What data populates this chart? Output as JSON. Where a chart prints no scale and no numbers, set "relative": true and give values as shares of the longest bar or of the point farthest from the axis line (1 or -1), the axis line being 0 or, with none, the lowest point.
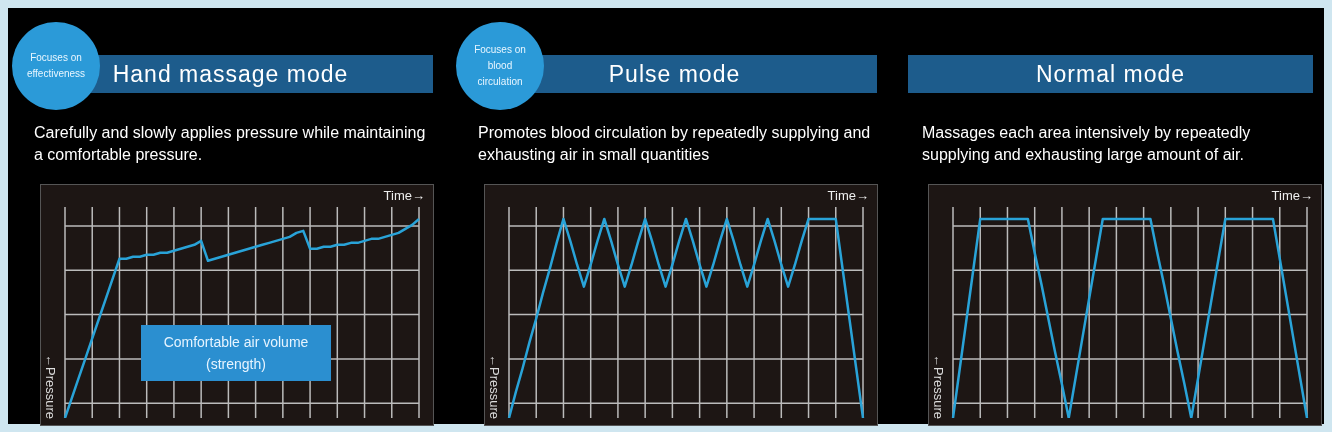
{
  "chart_data": [
    {
      "type": "line",
      "title": "Hand massage mode",
      "subtitle": "Carefully and slowly applies pressure while maintaining a comfortable pressure.",
      "xlabel": "Time→",
      "ylabel": "←Pressure",
      "annotations": [
        "Focuses on effectiveness",
        "Comfortable air volume (strength)"
      ],
      "relative": true,
      "grid": true,
      "categories": [
        null,
        null,
        null,
        null,
        null,
        null,
        null,
        null,
        null,
        null,
        null,
        null,
        null,
        null,
        null,
        null,
        null,
        null,
        null,
        null,
        null,
        null,
        null,
        null,
        null,
        null,
        null,
        null,
        null,
        null,
        null,
        null,
        null,
        null,
        null,
        null,
        null,
        null,
        null,
        null,
        null,
        null,
        null,
        null,
        null,
        null,
        null,
        null,
        null,
        null,
        null,
        null,
        null
      ],
      "series": [
        {
          "color": "#29a3d8",
          "values": [
            0,
            0.1,
            0.2,
            0.3,
            0.4,
            0.5,
            0.6,
            0.7,
            0.8,
            0.8,
            0.81,
            0.81,
            0.82,
            0.82,
            0.83,
            0.83,
            0.84,
            0.85,
            0.86,
            0.87,
            0.89,
            0.79,
            0.8,
            0.81,
            0.82,
            0.83,
            0.84,
            0.85,
            0.86,
            0.87,
            0.88,
            0.89,
            0.9,
            0.91,
            0.93,
            0.94,
            0.85,
            0.85,
            0.86,
            0.86,
            0.87,
            0.87,
            0.88,
            0.88,
            0.89,
            0.9,
            0.9,
            0.91,
            0.92,
            0.93,
            0.95,
            0.97,
            1.0
          ]
        }
      ]
    },
    {
      "type": "line",
      "title": "Pulse mode",
      "subtitle": "Promotes blood circulation by repeatedly supplying and exhausting air in small quantities",
      "xlabel": "Time→",
      "ylabel": "←Pressure",
      "annotations": [
        "Focuses on blood circulation"
      ],
      "relative": true,
      "grid": true,
      "categories": [
        null,
        null,
        null,
        null,
        null,
        null,
        null,
        null,
        null,
        null,
        null,
        null,
        null,
        null,
        null,
        null,
        null,
        null,
        null,
        null,
        null,
        null,
        null,
        null,
        null,
        null,
        null,
        null,
        null,
        null,
        null,
        null,
        null,
        null,
        null,
        null,
        null,
        null,
        null,
        null,
        null,
        null,
        null,
        null,
        null,
        null,
        null,
        null,
        null,
        null,
        null,
        null,
        null
      ],
      "series": [
        {
          "color": "#29a3d8",
          "values": [
            0,
            0.13,
            0.25,
            0.38,
            0.5,
            0.63,
            0.75,
            0.88,
            1,
            0.89,
            0.77,
            0.66,
            0.77,
            0.89,
            1,
            0.89,
            0.77,
            0.66,
            0.77,
            0.89,
            1,
            0.89,
            0.77,
            0.66,
            0.77,
            0.89,
            1,
            0.89,
            0.77,
            0.66,
            0.77,
            0.89,
            1,
            0.89,
            0.77,
            0.66,
            0.77,
            0.89,
            1,
            0.89,
            0.77,
            0.66,
            0.77,
            0.89,
            1,
            1,
            1,
            1,
            1,
            0.75,
            0.5,
            0.25,
            0
          ]
        }
      ]
    },
    {
      "type": "line",
      "title": "Normal mode",
      "subtitle": "Massages each area intensively by repeatedly supplying and exhausting large amount of air.",
      "xlabel": "Time→",
      "ylabel": "←Pressure",
      "relative": true,
      "grid": true,
      "categories": [
        null,
        null,
        null,
        null,
        null,
        null,
        null,
        null,
        null,
        null,
        null,
        null,
        null,
        null,
        null,
        null,
        null,
        null,
        null,
        null,
        null,
        null,
        null,
        null,
        null,
        null,
        null,
        null,
        null,
        null,
        null,
        null,
        null,
        null,
        null,
        null,
        null,
        null,
        null,
        null,
        null,
        null,
        null,
        null,
        null,
        null,
        null,
        null,
        null,
        null,
        null,
        null,
        null
      ],
      "series": [
        {
          "color": "#29a3d8",
          "values": [
            0,
            0.25,
            0.5,
            0.75,
            1,
            1,
            1,
            1,
            1,
            1,
            1,
            1,
            0.83,
            0.67,
            0.5,
            0.33,
            0.17,
            0,
            0.2,
            0.4,
            0.6,
            0.8,
            1,
            1,
            1,
            1,
            1,
            1,
            1,
            1,
            0.83,
            0.67,
            0.5,
            0.33,
            0.17,
            0,
            0.2,
            0.4,
            0.6,
            0.8,
            1,
            1,
            1,
            1,
            1,
            1,
            1,
            1,
            0.8,
            0.6,
            0.4,
            0.2,
            0
          ]
        }
      ]
    }
  ]
}
